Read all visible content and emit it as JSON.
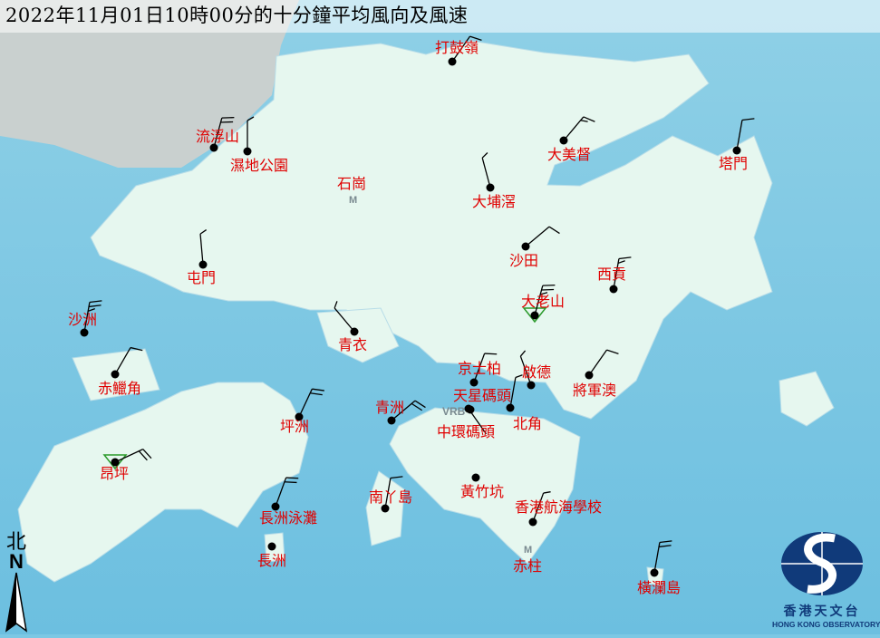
{
  "title": "2022年11月01日10時00分的十分鐘平均風向及風速",
  "colors": {
    "sea": "#7cc8e4",
    "land": "#e6f7ef",
    "label": "#e00000",
    "barb": "#000000",
    "logo": "#103a7a"
  },
  "north_arrow": {
    "label_cn": "北",
    "label_en": "N"
  },
  "logo": {
    "cn": "香港天文台",
    "en": "HONG KONG OBSERVATORY"
  },
  "map_markers": [
    {
      "name": "石崗",
      "symbol": "M"
    },
    {
      "name": "赤柱",
      "symbol": "M"
    },
    {
      "name": "",
      "symbol": "VRB"
    }
  ],
  "stations": [
    {
      "name": "打鼓嶺",
      "dir_deg": 35,
      "speed_kt": 10
    },
    {
      "name": "流浮山",
      "dir_deg": 15,
      "speed_kt": 20
    },
    {
      "name": "濕地公園",
      "dir_deg": 0,
      "speed_kt": 5
    },
    {
      "name": "大美督",
      "dir_deg": 40,
      "speed_kt": 15
    },
    {
      "name": "塔門",
      "dir_deg": 10,
      "speed_kt": 10
    },
    {
      "name": "大埔滘",
      "dir_deg": 345,
      "speed_kt": 5
    },
    {
      "name": "沙田",
      "dir_deg": 50,
      "speed_kt": 10
    },
    {
      "name": "屯門",
      "dir_deg": 355,
      "speed_kt": 5
    },
    {
      "name": "西貢",
      "dir_deg": 10,
      "speed_kt": 15
    },
    {
      "name": "大老山",
      "dir_deg": 15,
      "speed_kt": 25,
      "triangle": true
    },
    {
      "name": "沙洲",
      "dir_deg": 10,
      "speed_kt": 25
    },
    {
      "name": "青衣",
      "dir_deg": 320,
      "speed_kt": 5
    },
    {
      "name": "赤鱲角",
      "dir_deg": 30,
      "speed_kt": 10
    },
    {
      "name": "京士柏",
      "dir_deg": 20,
      "speed_kt": 10
    },
    {
      "name": "啟德",
      "dir_deg": 340,
      "speed_kt": 5
    },
    {
      "name": "將軍澳",
      "dir_deg": 35,
      "speed_kt": 10
    },
    {
      "name": "天星碼頭",
      "dir_deg": 145,
      "speed_kt": 0
    },
    {
      "name": "中環碼頭",
      "dir_deg": 0,
      "speed_kt": 0
    },
    {
      "name": "北角",
      "dir_deg": 10,
      "speed_kt": 5
    },
    {
      "name": "坪洲",
      "dir_deg": 25,
      "speed_kt": 20
    },
    {
      "name": "青洲",
      "dir_deg": 50,
      "speed_kt": 20
    },
    {
      "name": "昂坪",
      "dir_deg": 65,
      "speed_kt": 20,
      "triangle": true
    },
    {
      "name": "黃竹坑",
      "dir_deg": 320,
      "speed_kt": 0
    },
    {
      "name": "南丫島",
      "dir_deg": 10,
      "speed_kt": 10
    },
    {
      "name": "長洲泳灘",
      "dir_deg": 20,
      "speed_kt": 20
    },
    {
      "name": "長洲",
      "dir_deg": 0,
      "speed_kt": 0
    },
    {
      "name": "香港航海學校",
      "dir_deg": 20,
      "speed_kt": 5
    },
    {
      "name": "橫瀾島",
      "dir_deg": 10,
      "speed_kt": 20
    }
  ]
}
